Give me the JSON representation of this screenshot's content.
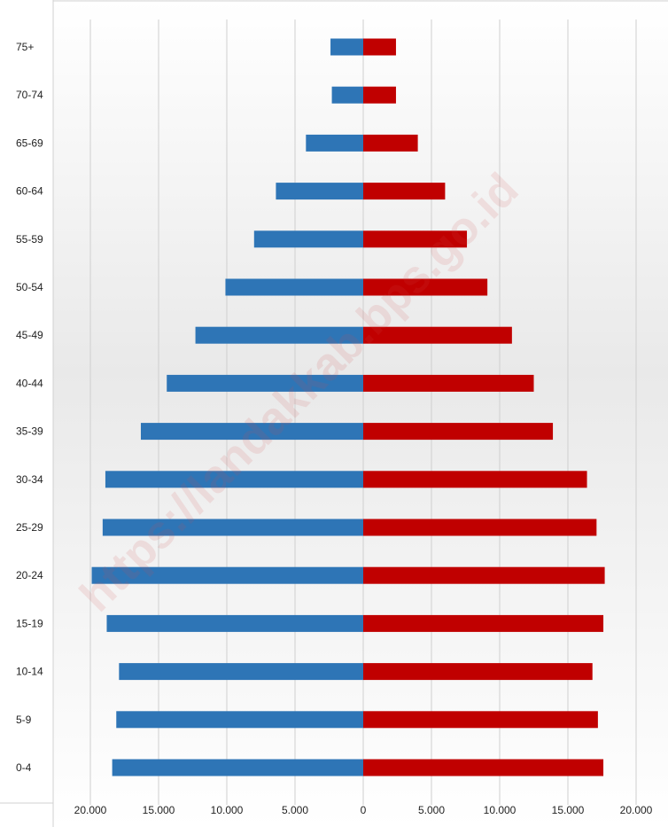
{
  "watermark_text": "https://landakkab.bps.go.id",
  "chart_data": {
    "type": "bar",
    "orientation": "horizontal",
    "layout": "population-pyramid",
    "categories": [
      "0-4",
      "5-9",
      "10-14",
      "15-19",
      "20-24",
      "25-29",
      "30-34",
      "35-39",
      "40-44",
      "45-49",
      "50-54",
      "55-59",
      "60-64",
      "65-69",
      "70-74",
      "75+"
    ],
    "series": [
      {
        "values": [
          18400,
          18100,
          17900,
          18800,
          19900,
          19100,
          18900,
          16300,
          14400,
          12300,
          10100,
          8000,
          6400,
          4200,
          2300,
          2400
        ],
        "color": "#2E75B6",
        "side": "left"
      },
      {
        "values": [
          17600,
          17200,
          16800,
          17600,
          17700,
          17100,
          16400,
          13900,
          12500,
          10900,
          9100,
          7600,
          6000,
          4000,
          2400,
          2400
        ],
        "color": "#C00000",
        "side": "right"
      }
    ],
    "xlim": [
      -20000,
      20000
    ],
    "xticks": [
      -20000,
      -15000,
      -10000,
      -5000,
      0,
      5000,
      10000,
      15000,
      20000
    ],
    "xtick_labels": [
      "20.000",
      "15.000",
      "10.000",
      "5.000",
      "0",
      "5.000",
      "10.000",
      "15.000",
      "20.000"
    ],
    "title": "",
    "xlabel": "",
    "ylabel": "",
    "grid": "vertical",
    "legend": "none"
  }
}
